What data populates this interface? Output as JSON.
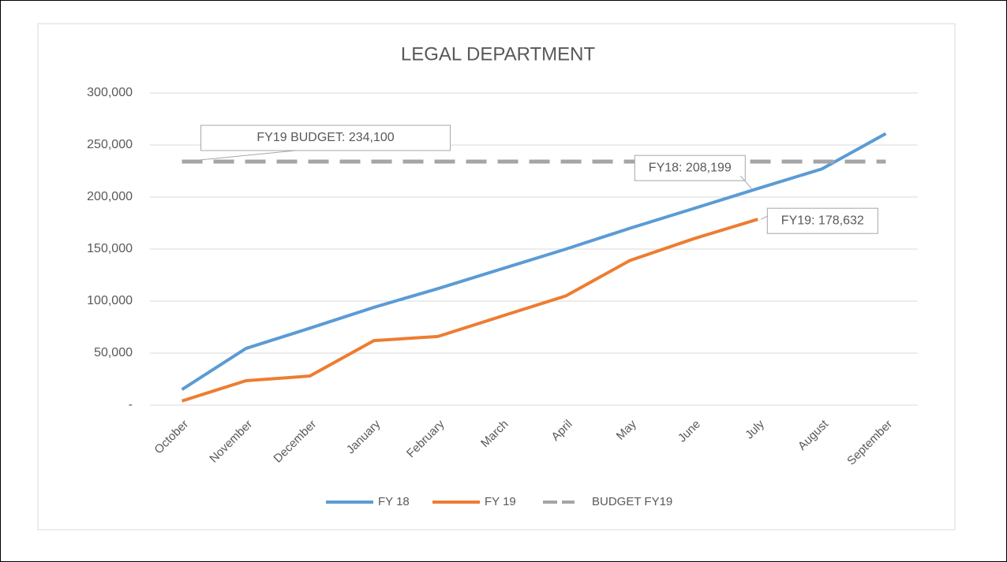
{
  "chart_data": {
    "type": "line",
    "title": "LEGAL DEPARTMENT",
    "categories": [
      "October",
      "November",
      "December",
      "January",
      "February",
      "March",
      "April",
      "May",
      "June",
      "July",
      "August",
      "September"
    ],
    "series": [
      {
        "name": "FY 18",
        "color": "#5b9bd5",
        "values": [
          15000,
          54500,
          74000,
          94000,
          112000,
          131000,
          150000,
          170000,
          189000,
          208199,
          227000,
          261000
        ],
        "value_labels": [
          null,
          null,
          null,
          null,
          null,
          null,
          null,
          null,
          null,
          "FY18:  208,199",
          null,
          null
        ]
      },
      {
        "name": "FY 19",
        "color": "#ed7d31",
        "values": [
          4000,
          23500,
          28000,
          62000,
          66000,
          85600,
          105000,
          139000,
          160000,
          178632,
          null,
          null
        ],
        "value_labels": [
          null,
          null,
          null,
          null,
          null,
          null,
          null,
          null,
          null,
          "FY19:  178,632",
          null,
          null
        ]
      },
      {
        "name": "BUDGET FY19",
        "color": "#a5a5a5",
        "dashed": true,
        "values": [
          234100,
          234100,
          234100,
          234100,
          234100,
          234100,
          234100,
          234100,
          234100,
          234100,
          234100,
          234100
        ],
        "value_labels": [
          "FY19 BUDGET: 234,100",
          null,
          null,
          null,
          null,
          null,
          null,
          null,
          null,
          null,
          null,
          null
        ]
      }
    ],
    "ylim": [
      0,
      300000
    ],
    "yticks": [
      {
        "value": 0,
        "label": "-"
      },
      {
        "value": 50000,
        "label": "50,000"
      },
      {
        "value": 100000,
        "label": "100,000"
      },
      {
        "value": 150000,
        "label": "150,000"
      },
      {
        "value": 200000,
        "label": "200,000"
      },
      {
        "value": 250000,
        "label": "250,000"
      },
      {
        "value": 300000,
        "label": "300,000"
      }
    ],
    "grid": true,
    "legend": "bottom"
  }
}
